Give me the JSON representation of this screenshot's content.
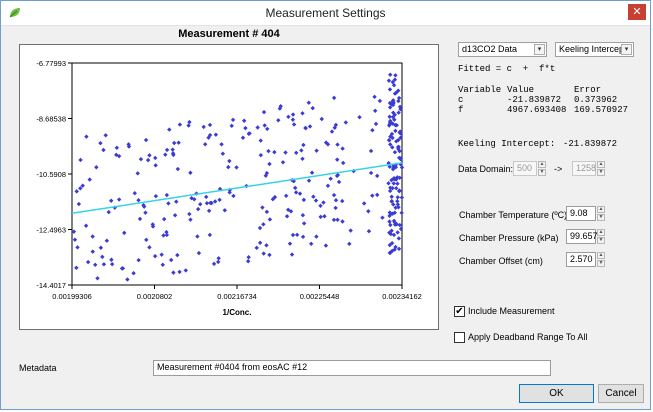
{
  "window": {
    "title": "Measurement Settings",
    "close_glyph": "✕",
    "icon": "leaf-icon"
  },
  "plot": {
    "title": "Measurement # 404"
  },
  "chart_data": {
    "type": "scatter",
    "title": "Measurement # 404",
    "xlabel": "1/Conc.",
    "ylabel": "",
    "xlim": [
      0.00199306,
      0.00234162
    ],
    "ylim": [
      -14.4017,
      -6.77993
    ],
    "x_ticks": [
      "0.00199306",
      "0.0020802",
      "0.00216734",
      "0.00225448",
      "0.00234162"
    ],
    "y_ticks": [
      "-6.77993",
      "-8.68538",
      "-10.5908",
      "-12.4963",
      "-14.4017"
    ],
    "fit_line": {
      "intercept": -21.839872,
      "slope": 4967.693408,
      "color": "#34d3e8"
    },
    "point_color": "#3b3bd6",
    "grid": false,
    "legend": "none"
  },
  "controls": {
    "data_select": "d13CO2 Data",
    "method_select": "Keeling Intercept",
    "dropdown_glyph": "▾"
  },
  "fit": {
    "equation": "Fitted = c  +  f*t",
    "headers": [
      "Variable",
      "Value",
      "Error"
    ],
    "rows": [
      [
        "c",
        "-21.839872",
        "0.373962"
      ],
      [
        "f",
        "4967.693408",
        "169.570927"
      ]
    ],
    "keeling_intercept_label": "Keeling Intercept:",
    "keeling_intercept_value": "-21.839872"
  },
  "domain": {
    "label": "Data Domain:",
    "from": "500",
    "separator": "->",
    "to": "1258"
  },
  "chamber": {
    "temperature_label": "Chamber Temperature (ºC)",
    "temperature_value": "9.08",
    "pressure_label": "Chamber Pressure (kPa)",
    "pressure_value": "99.657",
    "offset_label": "Chamber Offset (cm)",
    "offset_value": "2.570"
  },
  "options": {
    "include_label": "Include Measurement",
    "include_checked": true,
    "deadband_label": "Apply Deadband Range To All",
    "deadband_checked": false,
    "check_glyph": "✔"
  },
  "metadata": {
    "label": "Metadata",
    "value": "Measurement #0404  from eosAC #12"
  },
  "buttons": {
    "ok": "OK",
    "cancel": "Cancel"
  }
}
